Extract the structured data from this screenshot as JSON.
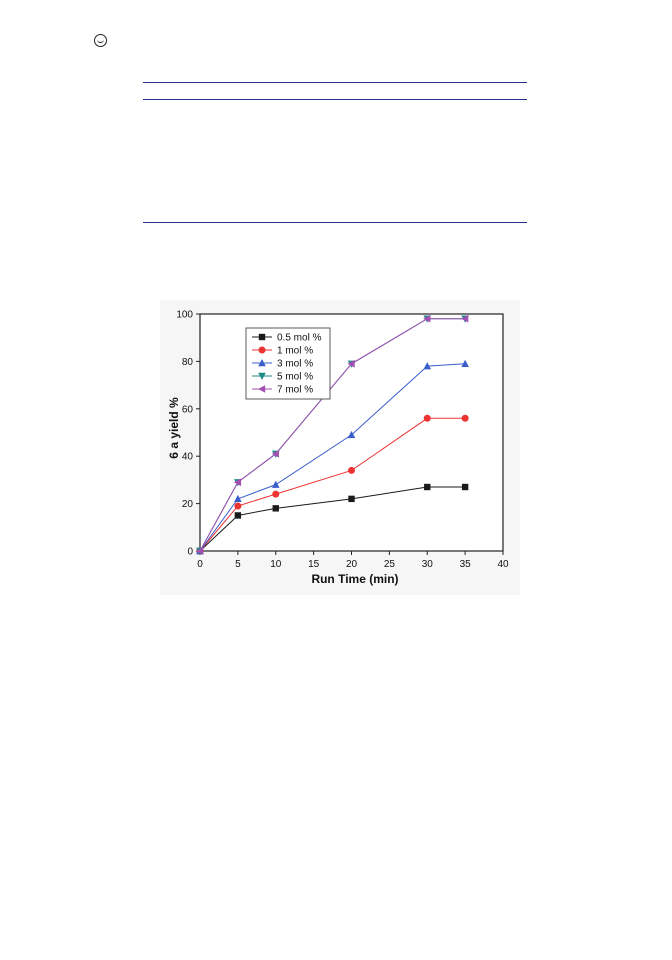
{
  "chart_data": {
    "type": "line",
    "title": "",
    "xlabel": "Run Time (min)",
    "ylabel": "6 a yield %",
    "xlim": [
      0,
      40
    ],
    "ylim": [
      0,
      100
    ],
    "xticks": [
      0,
      5,
      10,
      15,
      20,
      25,
      30,
      35,
      40
    ],
    "yticks": [
      0,
      20,
      40,
      60,
      80,
      100
    ],
    "grid": false,
    "legend": "top-left",
    "x": [
      0,
      5,
      10,
      20,
      30,
      35
    ],
    "series": [
      {
        "name": "0.5 mol %",
        "values": [
          0,
          15,
          18,
          22,
          27,
          27
        ],
        "color": "#1a1a1a",
        "marker": "square"
      },
      {
        "name": "1 mol %",
        "values": [
          0,
          19,
          24,
          34,
          56,
          56
        ],
        "color": "#ee3333",
        "marker": "circle"
      },
      {
        "name": "3 mol %",
        "values": [
          0,
          22,
          28,
          49,
          78,
          79
        ],
        "color": "#3a5fcd",
        "marker": "triangle-up"
      },
      {
        "name": "5 mol %",
        "values": [
          0,
          29,
          41,
          79,
          98,
          98
        ],
        "color": "#1f8a86",
        "marker": "triangle-down"
      },
      {
        "name": "7 mol %",
        "values": [
          0,
          29,
          41,
          79,
          98,
          98
        ],
        "color": "#a34fb2",
        "marker": "triangle-left"
      }
    ]
  }
}
